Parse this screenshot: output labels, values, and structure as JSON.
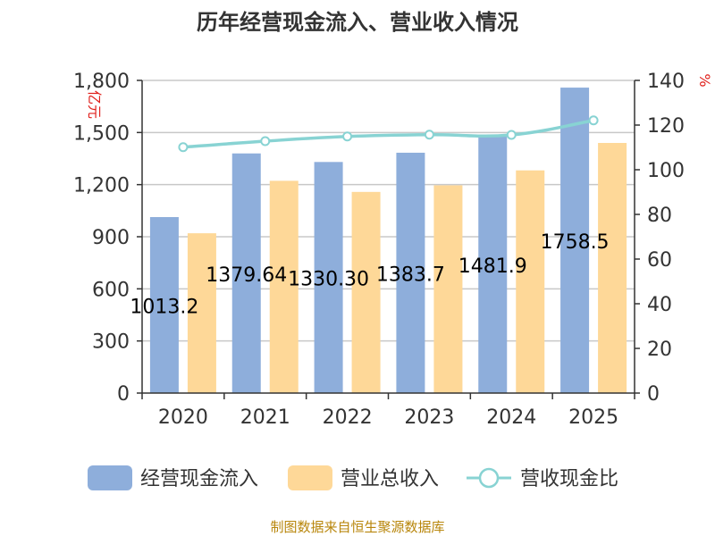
{
  "chart_data": {
    "type": "bar",
    "title": "历年经营现金流入、营业收入情况",
    "categories": [
      "2020",
      "2021",
      "2022",
      "2023",
      "2024",
      "2025"
    ],
    "series": [
      {
        "name": "经营现金流入",
        "type": "bar",
        "axis": "left",
        "values": [
          1013.2,
          1379.6,
          1330.3,
          1383.7,
          1481.9,
          1758.5
        ],
        "labels": [
          "1013.2",
          "1379.64",
          "1330.30",
          "1383.7",
          "1481.9",
          "1758.5"
        ],
        "color": "#8eaedb"
      },
      {
        "name": "营业总收入",
        "type": "bar",
        "axis": "left",
        "values": [
          920,
          1222,
          1158,
          1196,
          1282,
          1440
        ],
        "color": "#fed898"
      },
      {
        "name": "营收现金比",
        "type": "line",
        "axis": "right",
        "values": [
          110.1,
          112.8,
          114.9,
          115.7,
          115.6,
          122.1
        ],
        "color": "#88d3d3"
      }
    ],
    "y_left": {
      "label": "亿元",
      "ticks": [
        "0",
        "300",
        "600",
        "900",
        "1,200",
        "1,500",
        "1,800"
      ],
      "min": 0,
      "max": 1800
    },
    "y_right": {
      "label": "%",
      "ticks": [
        "0",
        "20",
        "40",
        "60",
        "80",
        "100",
        "120",
        "140"
      ],
      "min": 0,
      "max": 140
    },
    "grid": true,
    "legend": "bottom"
  },
  "source": "制图数据来自恒生聚源数据库"
}
